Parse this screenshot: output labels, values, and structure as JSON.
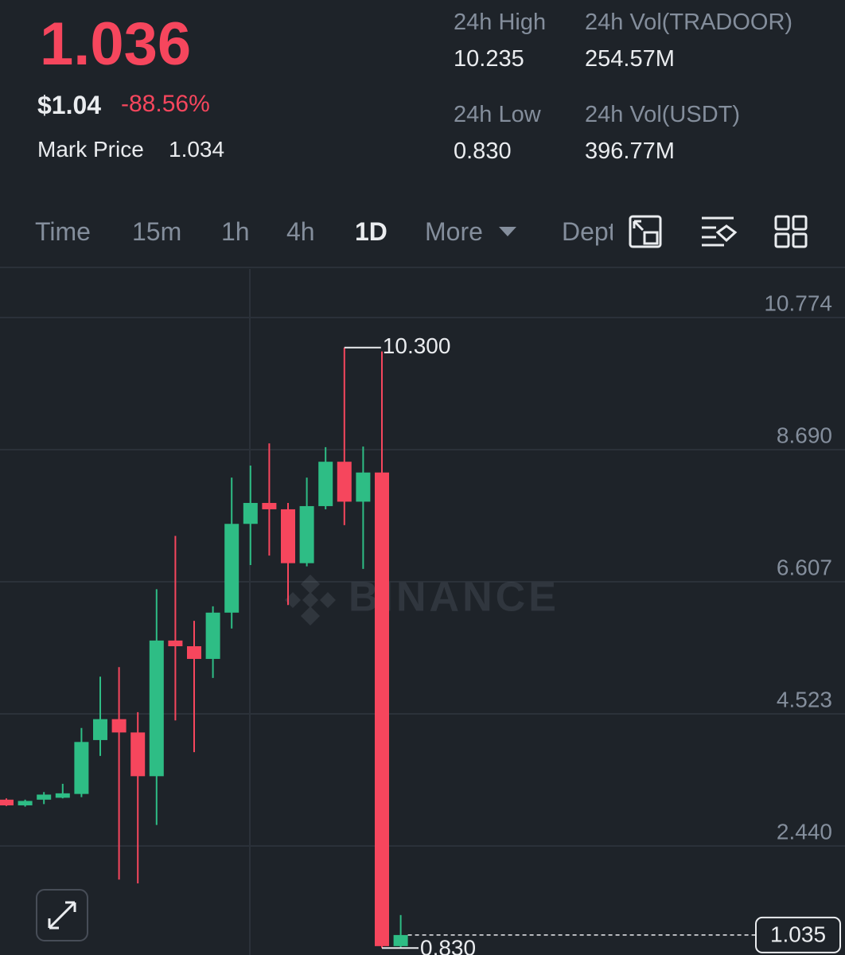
{
  "header": {
    "price": "1.036",
    "usd_price": "$1.04",
    "change": "-88.56%",
    "mark_price_label": "Mark Price",
    "mark_price": "1.034"
  },
  "stats": [
    {
      "label": "24h High",
      "value": "10.235"
    },
    {
      "label": "24h Vol(TRADOOR)",
      "value": "254.57M"
    },
    {
      "label": "24h Low",
      "value": "0.830"
    },
    {
      "label": "24h Vol(USDT)",
      "value": "396.77M"
    }
  ],
  "tabs": [
    "Time",
    "15m",
    "1h",
    "4h",
    "1D",
    "More",
    "Depth"
  ],
  "active_tab": "1D",
  "chart_data": {
    "type": "candlestick",
    "watermark": "BINANCE",
    "up_color": "#2ebd85",
    "down_color": "#f6465d",
    "open": [
      3.17,
      3.08,
      3.17,
      3.2,
      3.26,
      4.11,
      4.44,
      4.23,
      3.54,
      5.68,
      5.59,
      5.39,
      6.12,
      7.52,
      7.85,
      7.75,
      6.9,
      7.8,
      8.5,
      7.87,
      8.33,
      0.86
    ],
    "high": [
      3.19,
      3.17,
      3.29,
      3.42,
      4.3,
      5.11,
      5.26,
      4.55,
      6.49,
      7.33,
      5.99,
      6.22,
      8.25,
      8.44,
      8.79,
      7.85,
      8.25,
      8.73,
      10.3,
      8.74,
      10.24,
      1.35
    ],
    "low": [
      3.07,
      3.06,
      3.1,
      3.19,
      3.21,
      3.86,
      1.91,
      1.85,
      2.77,
      4.42,
      3.92,
      5.09,
      5.87,
      6.87,
      7.02,
      6.24,
      6.85,
      7.75,
      7.5,
      6.81,
      0.83,
      0.84
    ],
    "close": [
      3.08,
      3.15,
      3.25,
      3.27,
      4.08,
      4.44,
      4.23,
      3.54,
      5.68,
      5.59,
      5.39,
      6.12,
      7.52,
      7.85,
      7.75,
      6.9,
      7.8,
      8.5,
      7.87,
      8.33,
      0.86,
      1.035
    ],
    "ylim": [
      0.72,
      11.54
    ],
    "yticks": [
      10.774,
      {
        "value": 8.69,
        "label": "8.690"
      },
      6.607,
      4.523,
      {
        "value": 2.44,
        "label": "2.440"
      }
    ],
    "grid": true,
    "max_label": {
      "value": 10.3,
      "label": "10.300"
    },
    "min_label": {
      "value": 0.83,
      "label": "0.830"
    },
    "last_price": 1.035
  }
}
